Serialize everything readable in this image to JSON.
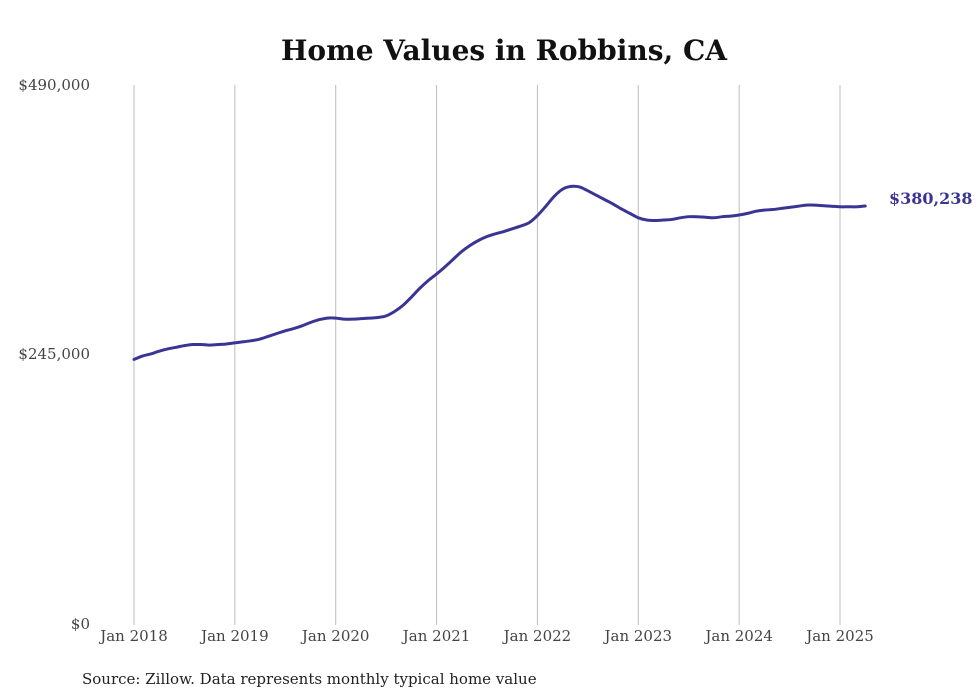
{
  "chart_data": {
    "type": "line",
    "title": "Home Values in Robbins, CA",
    "xlabel": "",
    "ylabel": "",
    "ylim": [
      0,
      490000
    ],
    "xlim": [
      "2018-01",
      "2025-05"
    ],
    "x_tick_labels": [
      "Jan 2018",
      "Jan 2019",
      "Jan 2020",
      "Jan 2021",
      "Jan 2022",
      "Jan 2023",
      "Jan 2024",
      "Jan 2025"
    ],
    "x_ticks": [
      "2018-01",
      "2019-01",
      "2020-01",
      "2021-01",
      "2022-01",
      "2023-01",
      "2024-01",
      "2025-01"
    ],
    "y_ticks": [
      0,
      245000,
      490000
    ],
    "y_tick_labels": [
      "$0",
      "$245,000",
      "$490,000"
    ],
    "grid": "vertical",
    "series": [
      {
        "color": "#3a3594",
        "points": [
          [
            "2018-01",
            241000
          ],
          [
            "2018-02",
            244000
          ],
          [
            "2018-03",
            246000
          ],
          [
            "2018-04",
            248500
          ],
          [
            "2018-05",
            250500
          ],
          [
            "2018-06",
            252000
          ],
          [
            "2018-07",
            253500
          ],
          [
            "2018-08",
            254500
          ],
          [
            "2018-09",
            254500
          ],
          [
            "2018-10",
            254000
          ],
          [
            "2018-11",
            254500
          ],
          [
            "2018-12",
            255000
          ],
          [
            "2019-01",
            256000
          ],
          [
            "2019-02",
            257000
          ],
          [
            "2019-03",
            258000
          ],
          [
            "2019-04",
            259500
          ],
          [
            "2019-05",
            262000
          ],
          [
            "2019-06",
            264500
          ],
          [
            "2019-07",
            267000
          ],
          [
            "2019-08",
            269000
          ],
          [
            "2019-09",
            271500
          ],
          [
            "2019-10",
            274500
          ],
          [
            "2019-11",
            277000
          ],
          [
            "2019-12",
            278500
          ],
          [
            "2020-01",
            278500
          ],
          [
            "2020-02",
            277500
          ],
          [
            "2020-03",
            277500
          ],
          [
            "2020-04",
            278000
          ],
          [
            "2020-05",
            278500
          ],
          [
            "2020-06",
            279000
          ],
          [
            "2020-07",
            280500
          ],
          [
            "2020-08",
            284500
          ],
          [
            "2020-09",
            290000
          ],
          [
            "2020-10",
            297500
          ],
          [
            "2020-11",
            305500
          ],
          [
            "2020-12",
            312500
          ],
          [
            "2021-01",
            318500
          ],
          [
            "2021-02",
            325000
          ],
          [
            "2021-03",
            332000
          ],
          [
            "2021-04",
            339000
          ],
          [
            "2021-05",
            344500
          ],
          [
            "2021-06",
            349000
          ],
          [
            "2021-07",
            352500
          ],
          [
            "2021-08",
            355000
          ],
          [
            "2021-09",
            357000
          ],
          [
            "2021-10",
            359500
          ],
          [
            "2021-11",
            362000
          ],
          [
            "2021-12",
            365000
          ],
          [
            "2022-01",
            371500
          ],
          [
            "2022-02",
            380000
          ],
          [
            "2022-03",
            389000
          ],
          [
            "2022-04",
            395500
          ],
          [
            "2022-05",
            398000
          ],
          [
            "2022-06",
            397500
          ],
          [
            "2022-07",
            394000
          ],
          [
            "2022-08",
            390000
          ],
          [
            "2022-09",
            386000
          ],
          [
            "2022-10",
            382000
          ],
          [
            "2022-11",
            377500
          ],
          [
            "2022-12",
            373500
          ],
          [
            "2023-01",
            369500
          ],
          [
            "2023-02",
            367500
          ],
          [
            "2023-03",
            367000
          ],
          [
            "2023-04",
            367500
          ],
          [
            "2023-05",
            368000
          ],
          [
            "2023-06",
            369500
          ],
          [
            "2023-07",
            370500
          ],
          [
            "2023-08",
            370500
          ],
          [
            "2023-09",
            370000
          ],
          [
            "2023-10",
            369500
          ],
          [
            "2023-11",
            370500
          ],
          [
            "2023-12",
            371000
          ],
          [
            "2024-01",
            372000
          ],
          [
            "2024-02",
            373500
          ],
          [
            "2024-03",
            375500
          ],
          [
            "2024-04",
            376500
          ],
          [
            "2024-05",
            377000
          ],
          [
            "2024-06",
            378000
          ],
          [
            "2024-07",
            379000
          ],
          [
            "2024-08",
            380000
          ],
          [
            "2024-09",
            381000
          ],
          [
            "2024-10",
            381000
          ],
          [
            "2024-11",
            380500
          ],
          [
            "2024-12",
            380000
          ],
          [
            "2025-01",
            379500
          ],
          [
            "2025-02",
            379500
          ],
          [
            "2025-03",
            379500
          ],
          [
            "2025-04",
            380238
          ]
        ]
      }
    ],
    "end_label": "$380,238",
    "annotations": [
      "$380,238"
    ],
    "legend": "none"
  },
  "source_note": "Source: Zillow. Data represents monthly typical home value"
}
